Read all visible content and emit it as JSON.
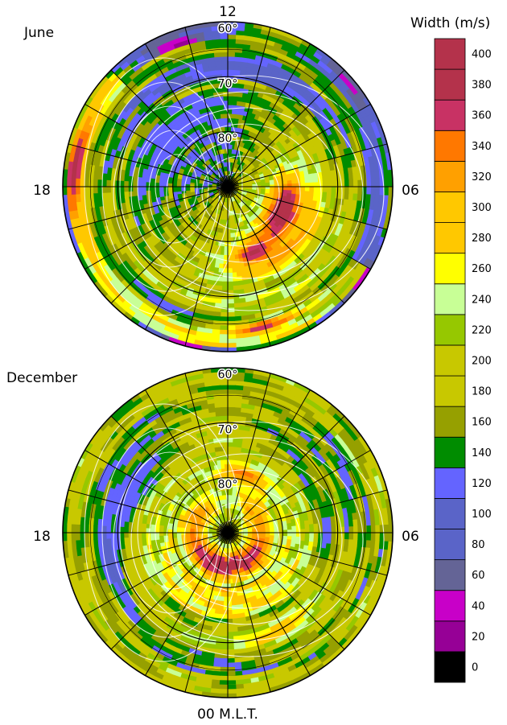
{
  "chart_data": {
    "type": "heatmap",
    "projection": "polar, magnetic latitude vs magnetic local time",
    "colorbar": {
      "title": "Width (m/s)",
      "ticks": [
        0,
        20,
        40,
        60,
        80,
        100,
        120,
        140,
        160,
        180,
        200,
        220,
        240,
        260,
        280,
        300,
        320,
        340,
        360,
        380,
        400
      ],
      "colors": [
        "#000000",
        "#960096",
        "#c800c8",
        "#646496",
        "#5a64c8",
        "#5a64c8",
        "#6464ff",
        "#008c00",
        "#96a000",
        "#c8c800",
        "#c8c800",
        "#96c800",
        "#c8ff96",
        "#ffff00",
        "#ffc800",
        "#ffc800",
        "#ffa000",
        "#ff7800",
        "#c83264",
        "#b4324b",
        "#b4324b"
      ]
    },
    "latitude_labels": [
      "60°",
      "70°",
      "80°"
    ],
    "mlt_labels": {
      "top": "12",
      "left": "18",
      "right": "06",
      "bottom": "00 M.L.T."
    },
    "panels": [
      {
        "name": "June",
        "features": [
          {
            "mlt_center": 4.5,
            "lat": 79,
            "mlt_width": 5,
            "lat_width": 7,
            "value": 400
          },
          {
            "mlt_center": 1.5,
            "lat": 77,
            "mlt_width": 3,
            "lat_width": 5,
            "value": 380
          },
          {
            "mlt_center": 3,
            "lat": 74,
            "mlt_width": 6,
            "lat_width": 4,
            "value": 320
          },
          {
            "mlt_center": 15,
            "lat": 76,
            "mlt_width": 6,
            "lat_width": 5,
            "value": 120
          },
          {
            "mlt_center": 10.5,
            "lat": 68,
            "mlt_width": 5,
            "lat_width": 4,
            "value": 100
          },
          {
            "mlt_center": 17.5,
            "lat": 62,
            "mlt_width": 3,
            "lat_width": 3,
            "value": 380
          },
          {
            "mlt_center": 6,
            "lat": 63,
            "mlt_width": 6,
            "lat_width": 4,
            "value": 100
          },
          {
            "mlt_center": 22,
            "lat": 66,
            "mlt_width": 5,
            "lat_width": 3,
            "value": 120
          },
          {
            "mlt_center": 1,
            "lat": 64,
            "mlt_width": 2,
            "lat_width": 2,
            "value": 380
          }
        ]
      },
      {
        "name": "December",
        "features": [
          {
            "mlt_center": 0,
            "lat": 84,
            "mlt_width": 24,
            "lat_width": 6,
            "value": 380
          },
          {
            "mlt_center": 11,
            "lat": 79,
            "mlt_width": 4,
            "lat_width": 4,
            "value": 340
          },
          {
            "mlt_center": 6,
            "lat": 72,
            "mlt_width": 4,
            "lat_width": 4,
            "value": 120
          },
          {
            "mlt_center": 16,
            "lat": 71,
            "mlt_width": 5,
            "lat_width": 4,
            "value": 120
          },
          {
            "mlt_center": 19,
            "lat": 68,
            "mlt_width": 5,
            "lat_width": 4,
            "value": 100
          },
          {
            "mlt_center": 2,
            "lat": 70,
            "mlt_width": 4,
            "lat_width": 4,
            "value": 300
          },
          {
            "mlt_center": 23,
            "lat": 70,
            "mlt_width": 3,
            "lat_width": 3,
            "value": 240
          }
        ]
      }
    ]
  }
}
